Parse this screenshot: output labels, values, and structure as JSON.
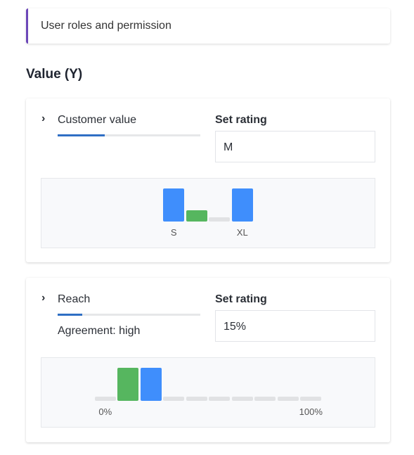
{
  "header": {
    "title": "User roles and permission"
  },
  "section_title": "Value (Y)",
  "cards": [
    {
      "name": "Customer value",
      "progress": 33,
      "rating_label": "Set rating",
      "rating": "M",
      "chart": {
        "type": "bar",
        "categories": [
          "S",
          null,
          null,
          "XL"
        ],
        "values": [
          3,
          1,
          0,
          3
        ],
        "colors": [
          "#3f8efc",
          "#56b65f",
          "#e1e2e4",
          "#3f8efc"
        ]
      }
    },
    {
      "name": "Reach",
      "progress": 17,
      "agreement": "Agreement: high",
      "rating_label": "Set rating",
      "rating": "15%",
      "chart": {
        "type": "bar",
        "categories": [
          "0%",
          null,
          null,
          null,
          null,
          null,
          null,
          null,
          null,
          "100%"
        ],
        "values": [
          0,
          3,
          3,
          0,
          0,
          0,
          0,
          0,
          0,
          0
        ],
        "colors": [
          "#e1e2e4",
          "#56b65f",
          "#3f8efc",
          "#e1e2e4",
          "#e1e2e4",
          "#e1e2e4",
          "#e1e2e4",
          "#e1e2e4",
          "#e1e2e4",
          "#e1e2e4"
        ]
      }
    }
  ]
}
